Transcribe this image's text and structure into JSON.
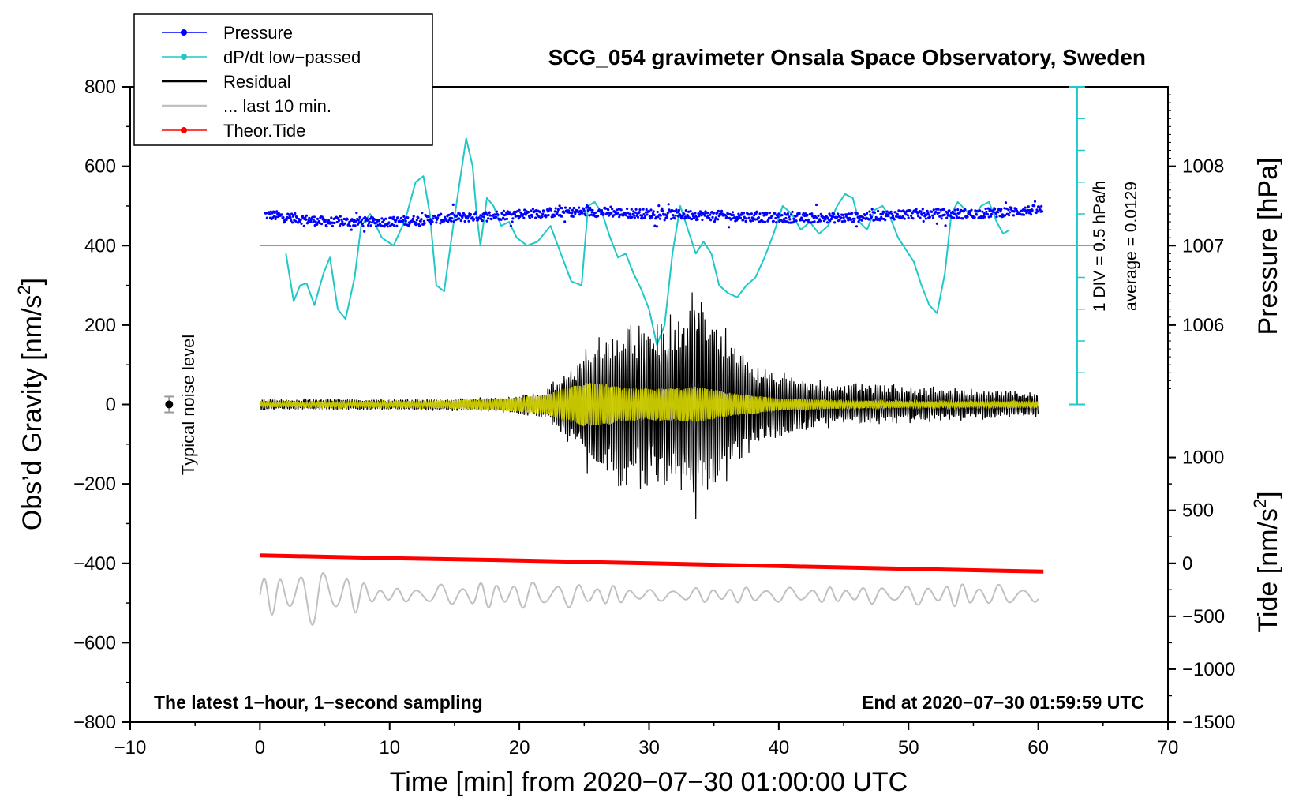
{
  "chart_data": {
    "type": "line",
    "title": "SCG_054 gravimeter Onsala Space Observatory, Sweden",
    "xlabel": "Time [min] from 2020−07−30 01:00:00 UTC",
    "ylabel_left": "Obs’d Gravity [nm/s2]",
    "ylabel_left_main": "Obs’d Gravity [nm/s",
    "ylabel_right_top": "Pressure [hPa]",
    "ylabel_right_bottom_main": "Tide [nm/s",
    "superscript": "2",
    "label_close": "]",
    "xlim": [
      -10,
      70
    ],
    "ylim_left": [
      -800,
      800
    ],
    "x_ticks": [
      -10,
      0,
      10,
      20,
      30,
      40,
      50,
      60,
      70
    ],
    "x_tick_labels": [
      "−10",
      "0",
      "10",
      "20",
      "30",
      "40",
      "50",
      "60",
      "70"
    ],
    "y_ticks_left": [
      800,
      600,
      400,
      200,
      0,
      -200,
      -400,
      -600,
      -800
    ],
    "y_tick_labels_left": [
      "800",
      "600",
      "400",
      "200",
      "0",
      "−200",
      "−400",
      "−600",
      "−800"
    ],
    "pressure_axis": {
      "ticks": [
        1008,
        1007,
        1006
      ],
      "tick_labels": [
        "1008",
        "1007",
        "1006"
      ],
      "gravity_at_1007": 400,
      "gravity_per_hPa": 200
    },
    "tide_axis": {
      "ticks": [
        1000,
        500,
        0,
        -500,
        -1000,
        -1500
      ],
      "tick_labels": [
        "1000",
        "500",
        "0",
        "−500",
        "−1000",
        "−1500"
      ],
      "gravity_at_0": -400,
      "gravity_per_unit": 0.2667
    },
    "dpdt_scale": {
      "label_div": "1 DIV = 0.5 hPa/h",
      "label_avg": "average = 0.0129",
      "zero_line_gravity": 400,
      "top_gravity": 800,
      "bottom_gravity": 0,
      "divisions": 10
    },
    "legend": [
      {
        "label": "Pressure",
        "color": "#0000ff",
        "marker": true
      },
      {
        "label": "dP/dt low−passed",
        "color": "#20c8c8",
        "marker": true
      },
      {
        "label": "Residual",
        "color": "#000000",
        "marker": false
      },
      {
        "label": "... last 10 min.",
        "color": "#c0c0c0",
        "marker": false
      },
      {
        "label": "Theor.Tide",
        "color": "#ff0000",
        "marker": true
      }
    ],
    "noise_marker": {
      "x": -7,
      "y": 0,
      "err": 20,
      "label": "Typical noise level"
    },
    "annotation_left": "The latest 1−hour, 1−second sampling",
    "annotation_right": "End at 2020−07−30 01:59:59 UTC",
    "series": [
      {
        "name": "Theor.Tide",
        "color": "#ff0000",
        "x": [
          0,
          10,
          20,
          30,
          40,
          50,
          60.4
        ],
        "y": [
          -380,
          -387,
          -393,
          -400,
          -407,
          -414,
          -421
        ]
      },
      {
        "name": "dP/dt low-passed",
        "color": "#20c8c8",
        "x": [
          2.0,
          2.6,
          3.1,
          3.6,
          4.2,
          4.9,
          5.4,
          6.0,
          6.6,
          7.3,
          7.8,
          8.5,
          9.4,
          10.3,
          11.2,
          12.0,
          12.6,
          13.1,
          13.6,
          14.2,
          14.9,
          15.4,
          15.9,
          16.4,
          16.7,
          17.0,
          17.5,
          18.0,
          18.6,
          19.2,
          19.8,
          20.6,
          21.4,
          22.4,
          23.2,
          24.0,
          24.8,
          25.3,
          25.8,
          26.4,
          27.0,
          27.6,
          28.2,
          28.8,
          29.4,
          30.0,
          30.6,
          31.2,
          31.8,
          32.4,
          33.0,
          33.6,
          34.2,
          34.8,
          35.4,
          36.1,
          36.8,
          37.5,
          38.2,
          38.9,
          39.6,
          40.3,
          41.0,
          41.7,
          42.4,
          43.1,
          43.8,
          44.5,
          45.1,
          45.7,
          46.2,
          46.8,
          47.4,
          48.0,
          48.6,
          49.2,
          49.8,
          50.4,
          51.0,
          51.6,
          52.2,
          52.8,
          53.3,
          53.8,
          54.4,
          55.0,
          55.6,
          56.2,
          56.8,
          57.3,
          57.8
        ],
        "y": [
          380,
          260,
          300,
          305,
          250,
          330,
          370,
          240,
          215,
          320,
          450,
          480,
          420,
          400,
          465,
          560,
          575,
          480,
          300,
          285,
          450,
          560,
          670,
          600,
          480,
          400,
          520,
          500,
          450,
          460,
          420,
          400,
          410,
          450,
          380,
          310,
          300,
          500,
          510,
          480,
          420,
          370,
          380,
          330,
          290,
          240,
          150,
          200,
          380,
          500,
          440,
          380,
          410,
          380,
          300,
          280,
          270,
          300,
          320,
          370,
          430,
          500,
          480,
          440,
          460,
          430,
          450,
          500,
          530,
          520,
          460,
          440,
          490,
          500,
          470,
          420,
          390,
          360,
          300,
          250,
          230,
          330,
          480,
          510,
          490,
          470,
          500,
          510,
          460,
          430,
          440
        ]
      }
    ],
    "residual_envelope": {
      "x": [
        0,
        5,
        10,
        15,
        18,
        20,
        22,
        23,
        24,
        25,
        26,
        27,
        28,
        29,
        30,
        31,
        32,
        33,
        33.5,
        34,
        35,
        36,
        37,
        38,
        40,
        42,
        44,
        46,
        48,
        50,
        52,
        55,
        58,
        60
      ],
      "amp": [
        15,
        15,
        15,
        17,
        20,
        25,
        40,
        75,
        110,
        170,
        200,
        180,
        240,
        210,
        230,
        240,
        230,
        260,
        300,
        260,
        230,
        200,
        160,
        120,
        85,
        70,
        60,
        55,
        55,
        50,
        45,
        40,
        40,
        35
      ]
    },
    "yellow_envelope": {
      "x": [
        0,
        10,
        15,
        20,
        22,
        23,
        25,
        27,
        28,
        30,
        32,
        34,
        36,
        38,
        40,
        45,
        50,
        55,
        60
      ],
      "amp": [
        6,
        8,
        10,
        18,
        25,
        35,
        55,
        50,
        42,
        40,
        42,
        45,
        30,
        24,
        15,
        10,
        8,
        8,
        8
      ]
    },
    "pressure_baseline": {
      "x": [
        0,
        5,
        10,
        15,
        20,
        25,
        30,
        35,
        40,
        45,
        50,
        55,
        60
      ],
      "y": [
        1007.4,
        1007.3,
        1007.3,
        1007.35,
        1007.4,
        1007.43,
        1007.4,
        1007.38,
        1007.35,
        1007.35,
        1007.4,
        1007.4,
        1007.45
      ]
    },
    "last10_envelope": {
      "x": [
        0,
        1,
        2,
        3,
        4,
        4.5,
        5,
        6,
        7,
        8,
        9,
        10,
        15,
        20,
        25,
        30,
        35,
        40,
        45,
        50,
        55,
        60
      ],
      "amp": [
        45,
        50,
        50,
        65,
        75,
        85,
        70,
        55,
        50,
        35,
        25,
        15,
        30,
        35,
        30,
        15,
        20,
        20,
        20,
        25,
        30,
        20
      ]
    }
  }
}
